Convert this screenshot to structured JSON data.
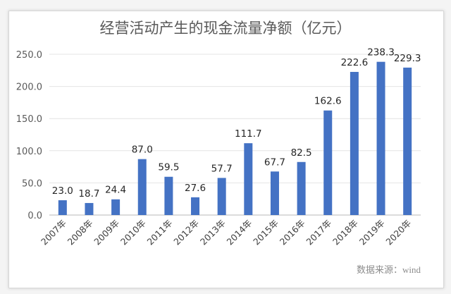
{
  "chart_data": {
    "type": "bar",
    "title": "经营活动产生的现金流量净额（亿元）",
    "categories": [
      "2007年",
      "2008年",
      "2009年",
      "2010年",
      "2011年",
      "2012年",
      "2013年",
      "2014年",
      "2015年",
      "2016年",
      "2017年",
      "2018年",
      "2019年",
      "2020年"
    ],
    "values": [
      23.0,
      18.7,
      24.4,
      87.0,
      59.5,
      27.6,
      57.7,
      111.7,
      67.7,
      82.5,
      162.6,
      222.6,
      238.3,
      229.3
    ],
    "value_labels": [
      "23.0",
      "18.7",
      "24.4",
      "87.0",
      "59.5",
      "27.6",
      "57.7",
      "111.7",
      "67.7",
      "82.5",
      "162.6",
      "222.6",
      "238.3",
      "229.3"
    ],
    "yticks": [
      "0.0",
      "50.0",
      "100.0",
      "150.0",
      "200.0",
      "250.0"
    ],
    "ylim": [
      0,
      250
    ],
    "grid": true,
    "bar_color": "#4472c4",
    "source": "数据来源：wind"
  }
}
